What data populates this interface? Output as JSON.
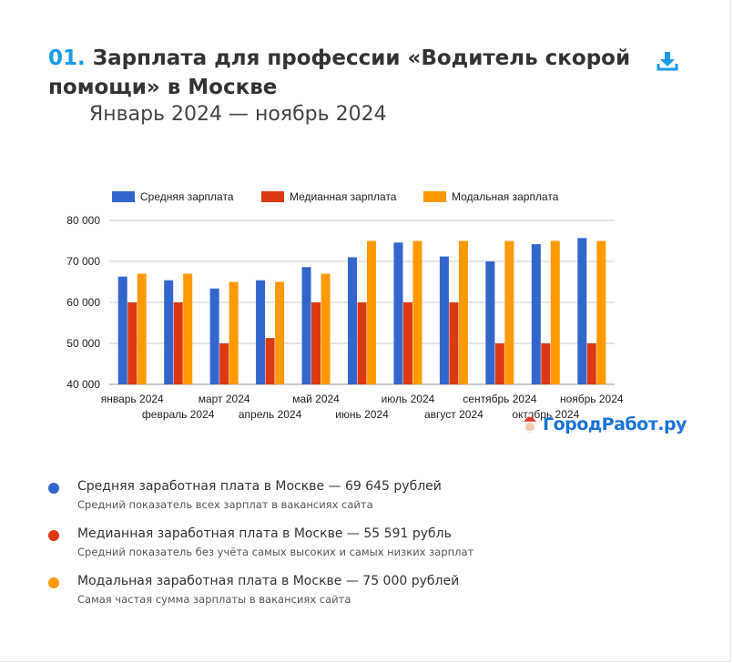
{
  "header": {
    "number": "01.",
    "title": "Зарплата для профессии «Водитель скорой помощи» в Москве",
    "period": "Январь 2024 — ноябрь 2024",
    "download_icon": "download-icon"
  },
  "logo": {
    "text": "ГородРабот.ру",
    "icon": "santa-face-icon"
  },
  "colors": {
    "average": "#3366cc",
    "median": "#dc3912",
    "modal": "#ff9900",
    "accent": "#1a9be6"
  },
  "chart_data": {
    "type": "bar",
    "categories": [
      "январь 2024",
      "февраль 2024",
      "март 2024",
      "апрель 2024",
      "май 2024",
      "июнь 2024",
      "июль 2024",
      "август 2024",
      "сентябрь 2024",
      "октябрь 2024",
      "ноябрь 2024"
    ],
    "series": [
      {
        "name": "Средняя зарплата",
        "color": "#3366cc",
        "values": [
          66300,
          65400,
          63400,
          65400,
          68600,
          71000,
          74600,
          71200,
          70000,
          74200,
          75700
        ]
      },
      {
        "name": "Медианная зарплата",
        "color": "#dc3912",
        "values": [
          60000,
          60000,
          50000,
          51300,
          60000,
          60000,
          60000,
          60000,
          50000,
          50000,
          50000
        ]
      },
      {
        "name": "Модальная зарплата",
        "color": "#ff9900",
        "values": [
          67000,
          67000,
          65000,
          65000,
          67000,
          75000,
          75000,
          75000,
          75000,
          75000,
          75000
        ]
      }
    ],
    "yticks": [
      "40 000",
      "50 000",
      "60 000",
      "70 000",
      "80 000"
    ],
    "ylim": [
      40000,
      80000
    ],
    "grid": true,
    "legend": "top"
  },
  "stats": [
    {
      "color": "#3366cc",
      "title": "Средняя заработная плата в Москве — 69 645 рублей",
      "desc": "Средний показатель всех зарплат в вакансиях сайта"
    },
    {
      "color": "#dc3912",
      "title": "Медианная заработная плата в Москве — 55 591 рубль",
      "desc": "Средний показатель без учёта самых высоких и самых низких зарплат"
    },
    {
      "color": "#ff9900",
      "title": "Модальная заработная плата в Москве — 75 000 рублей",
      "desc": "Самая частая сумма зарплаты в вакансиях сайта"
    }
  ]
}
